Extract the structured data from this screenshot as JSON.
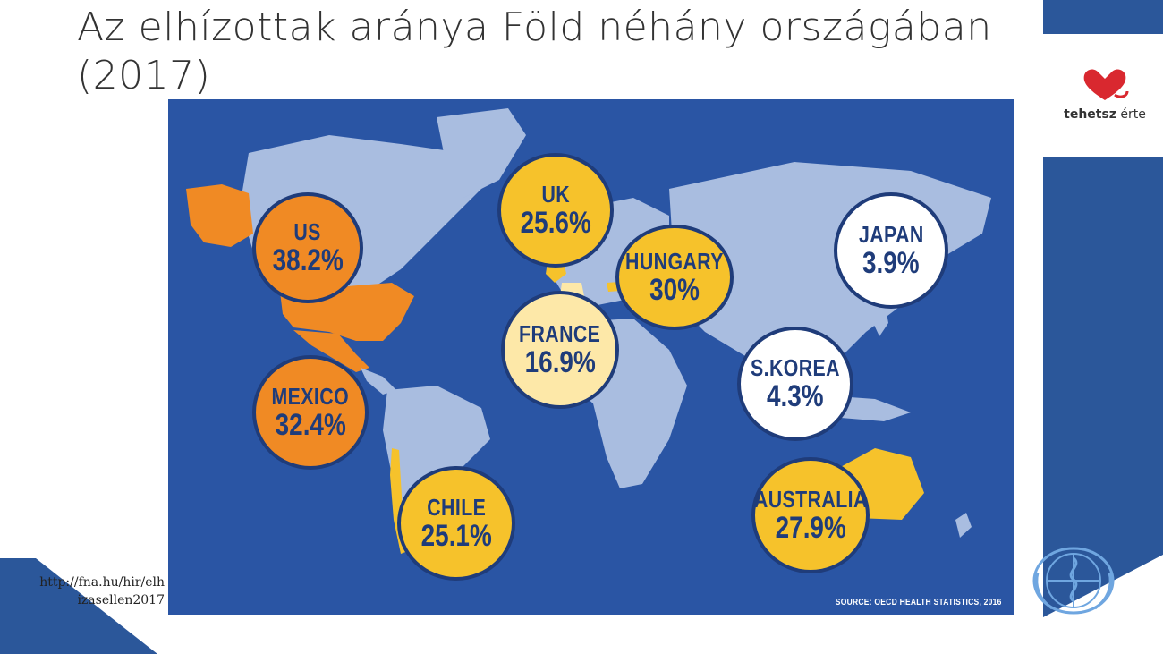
{
  "slide": {
    "title": "Az elhízottak aránya Föld néhány országában (2017)",
    "source_url": "http://fna.hu/hir/elhizasellen2017"
  },
  "logo": {
    "brand_bold": "tehetsz",
    "brand_light": " érte"
  },
  "map": {
    "source_note": "SOURCE: OECD HEALTH STATISTICS, 2016",
    "colors": {
      "ocean": "#2a55a4",
      "land": "#a9bde0",
      "high": "#f08a24",
      "mid": "#f6c22b",
      "low_mid": "#fde8a8",
      "low": "#ffffff",
      "outline": "#1f3c7a"
    },
    "countries": [
      {
        "name": "US",
        "value": "38.2%",
        "tier": "high"
      },
      {
        "name": "MEXICO",
        "value": "32.4%",
        "tier": "high"
      },
      {
        "name": "UK",
        "value": "25.6%",
        "tier": "mid"
      },
      {
        "name": "HUNGARY",
        "value": "30%",
        "tier": "mid"
      },
      {
        "name": "FRANCE",
        "value": "16.9%",
        "tier": "low_mid"
      },
      {
        "name": "JAPAN",
        "value": "3.9%",
        "tier": "low"
      },
      {
        "name": "S.KOREA",
        "value": "4.3%",
        "tier": "low"
      },
      {
        "name": "CHILE",
        "value": "25.1%",
        "tier": "mid"
      },
      {
        "name": "AUSTRALIA",
        "value": "27.9%",
        "tier": "mid"
      }
    ]
  }
}
